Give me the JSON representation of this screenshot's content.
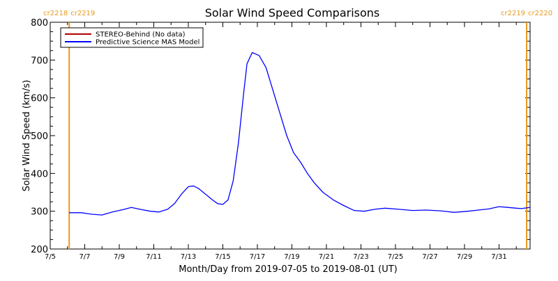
{
  "chart_data": {
    "type": "line",
    "title": "Solar Wind Speed Comparisons",
    "xlabel": "Month/Day from 2019-07-05 to 2019-08-01 (UT)",
    "ylabel": "Solar Wind Speed (km/s)",
    "xlim": [
      0,
      27.8
    ],
    "ylim": [
      200,
      800
    ],
    "yticks": [
      200,
      300,
      400,
      500,
      600,
      700,
      800
    ],
    "xticks": [
      {
        "day": 0,
        "label": "7/5"
      },
      {
        "day": 2,
        "label": "7/7"
      },
      {
        "day": 4,
        "label": "7/9"
      },
      {
        "day": 6,
        "label": "7/11"
      },
      {
        "day": 8,
        "label": "7/13"
      },
      {
        "day": 10,
        "label": "7/15"
      },
      {
        "day": 12,
        "label": "7/17"
      },
      {
        "day": 14,
        "label": "7/19"
      },
      {
        "day": 16,
        "label": "7/21"
      },
      {
        "day": 18,
        "label": "7/23"
      },
      {
        "day": 20,
        "label": "7/25"
      },
      {
        "day": 22,
        "label": "7/27"
      },
      {
        "day": 24,
        "label": "7/29"
      },
      {
        "day": 26,
        "label": "7/31"
      }
    ],
    "carrington_markers": [
      {
        "day": 1.1,
        "label_left": "cr2218",
        "label_right": "cr2219",
        "side": "left"
      },
      {
        "day": 27.6,
        "label_left": "cr2219",
        "label_right": "cr2220",
        "side": "right"
      }
    ],
    "legend": {
      "position": "top-left",
      "entries": [
        {
          "name": "STEREO-Behind (No data)",
          "color": "#b00000"
        },
        {
          "name": "Predictive Science MAS Model",
          "color": "#0000ff"
        }
      ]
    },
    "series": [
      {
        "name": "Predictive Science MAS Model",
        "color": "#0000ff",
        "x": [
          1.1,
          1.8,
          2.4,
          3.0,
          3.6,
          4.2,
          4.7,
          5.2,
          5.8,
          6.3,
          6.8,
          7.2,
          7.6,
          8.0,
          8.3,
          8.6,
          9.0,
          9.4,
          9.7,
          10.0,
          10.3,
          10.6,
          10.9,
          11.2,
          11.4,
          11.7,
          12.1,
          12.5,
          12.9,
          13.3,
          13.7,
          14.1,
          14.5,
          14.9,
          15.3,
          15.8,
          16.4,
          17.0,
          17.6,
          18.2,
          18.8,
          19.4,
          20.2,
          21.0,
          21.8,
          22.6,
          23.4,
          24.2,
          24.8,
          25.4,
          26.0,
          26.5,
          27.0,
          27.3,
          27.8
        ],
        "y": [
          296,
          296,
          292,
          290,
          298,
          304,
          310,
          305,
          300,
          298,
          305,
          320,
          345,
          365,
          367,
          360,
          345,
          330,
          320,
          318,
          330,
          380,
          480,
          610,
          690,
          720,
          712,
          680,
          620,
          560,
          500,
          455,
          430,
          400,
          375,
          350,
          330,
          315,
          302,
          300,
          305,
          308,
          305,
          302,
          303,
          301,
          297,
          300,
          303,
          306,
          312,
          310,
          308,
          307,
          310
        ]
      }
    ]
  }
}
